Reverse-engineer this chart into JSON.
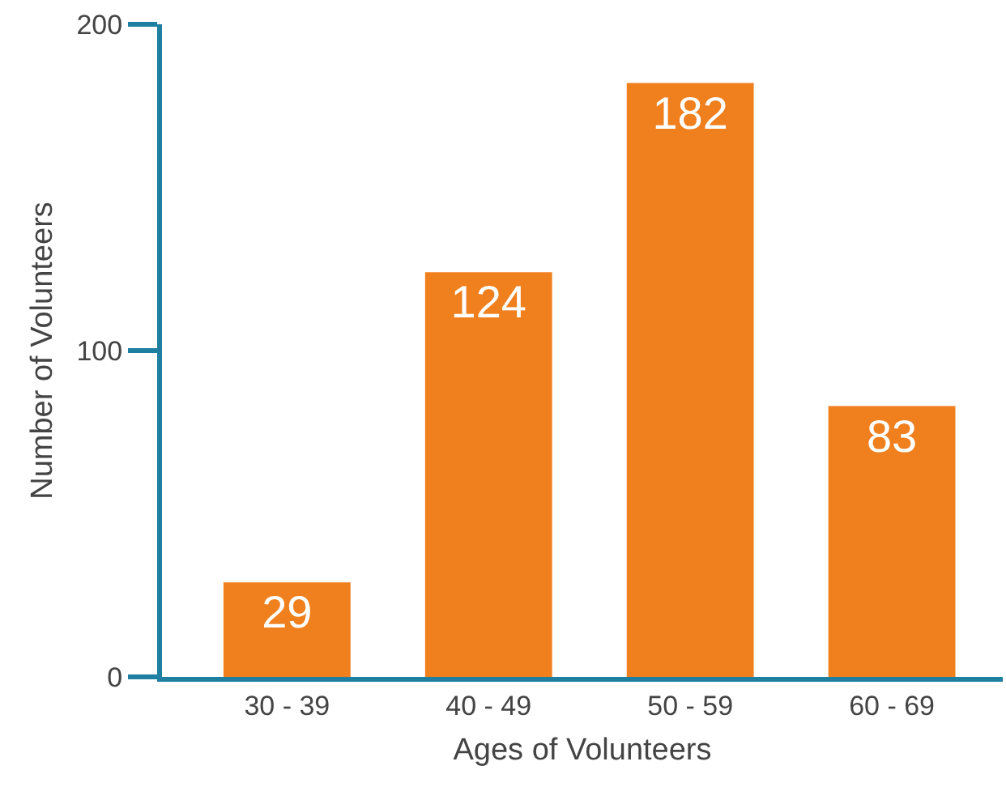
{
  "chart_data": {
    "type": "bar",
    "xlabel": "Ages of Volunteers",
    "ylabel": "Number of Volunteers",
    "categories": [
      "30 - 39",
      "40 - 49",
      "50 - 59",
      "60 - 69"
    ],
    "values": [
      29,
      124,
      182,
      83
    ],
    "color": "#f07f1e",
    "ylim": [
      0,
      200
    ],
    "yticks": [
      0,
      100,
      200
    ],
    "grid": false,
    "data_labels": true
  }
}
